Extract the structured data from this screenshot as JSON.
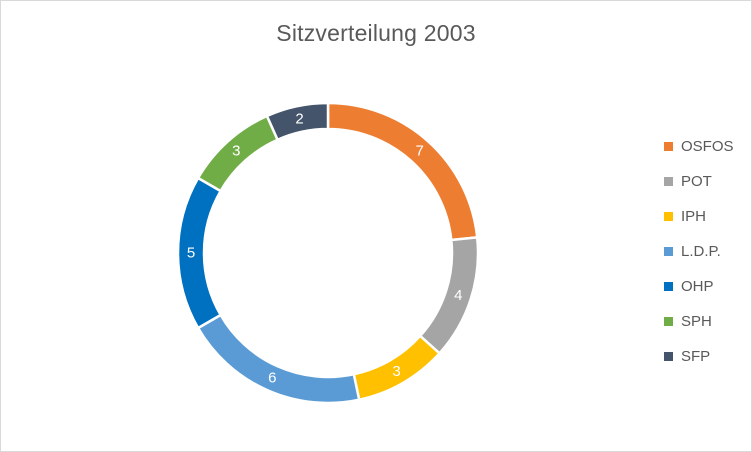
{
  "chart_data": {
    "type": "pie",
    "variant": "donut",
    "title": "Sitzverteilung 2003",
    "categories": [
      "OSFOS",
      "POT",
      "IPH",
      "L.D.P.",
      "OHP",
      "SPH",
      "SFP"
    ],
    "values": [
      7,
      4,
      3,
      6,
      5,
      3,
      2
    ],
    "data_labels": [
      "7",
      "4",
      "3",
      "6",
      "5",
      "3",
      "2"
    ],
    "colors": [
      "#ed7d31",
      "#a5a5a5",
      "#ffc000",
      "#5b9bd5",
      "#0070c0",
      "#70ad47",
      "#44546a"
    ],
    "legend_position": "right"
  }
}
